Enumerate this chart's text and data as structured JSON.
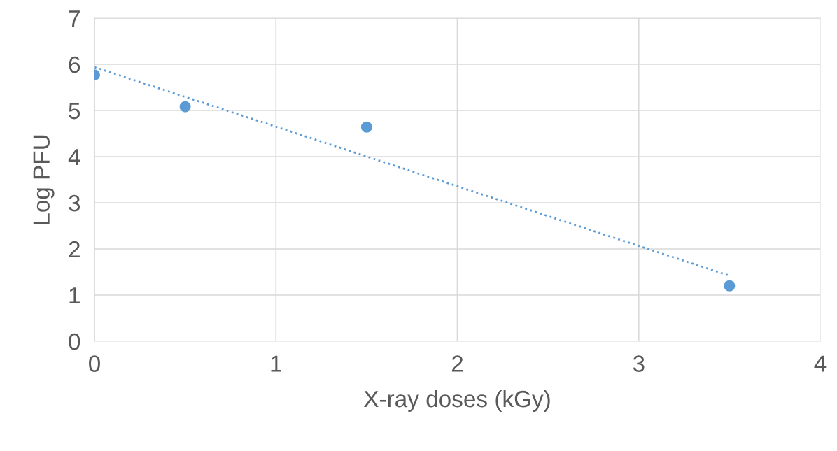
{
  "chart_data": {
    "type": "scatter",
    "xlabel": "X-ray doses (kGy)",
    "ylabel": "Log PFU",
    "series": [
      {
        "color": "#5b9bd5",
        "x": [
          0,
          0.5,
          1.5,
          3.5
        ],
        "values": [
          5.77,
          5.08,
          4.64,
          1.2
        ],
        "marker": "circle"
      },
      {
        "type": "line",
        "color": "#5b9bd5",
        "x": [
          0,
          3.5
        ],
        "values": [
          5.94,
          1.42
        ],
        "line_style": "dotted",
        "marker": "none"
      }
    ],
    "xlim": [
      0,
      4
    ],
    "ylim": [
      0,
      7
    ],
    "xticks": [
      0,
      1,
      2,
      3,
      4
    ],
    "yticks": [
      0,
      1,
      2,
      3,
      4,
      5,
      6,
      7
    ],
    "grid": true
  }
}
